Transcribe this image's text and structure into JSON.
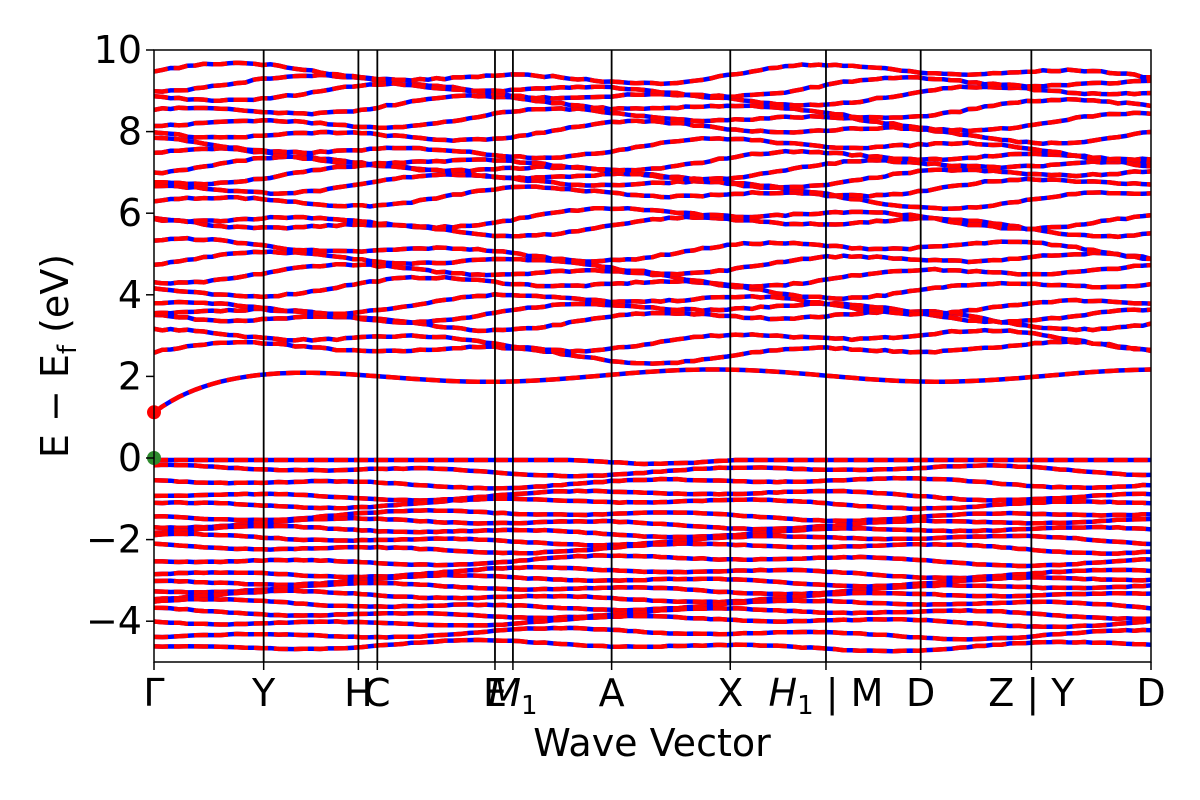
{
  "chart_data": {
    "type": "line",
    "title": "",
    "xlabel": "Wave Vector",
    "ylabel": "E − E_f (eV)",
    "ylabel_parts": {
      "main": "E − E",
      "sub": "f",
      "unit": " (eV)"
    },
    "ylim": [
      -5,
      10
    ],
    "yticks": [
      -4,
      -2,
      0,
      2,
      4,
      6,
      8,
      10
    ],
    "ytick_labels": [
      "−4",
      "−2",
      "0",
      "2",
      "4",
      "6",
      "8",
      "10"
    ],
    "kpath": [
      {
        "label": "Γ",
        "k": 0.0
      },
      {
        "label": "Y",
        "k": 0.11
      },
      {
        "label": "H",
        "k": 0.205
      },
      {
        "label": "C",
        "k": 0.224
      },
      {
        "label": "E",
        "k": 0.342
      },
      {
        "label": "M",
        "sub": "1",
        "k": 0.36
      },
      {
        "label": "A",
        "k": 0.459
      },
      {
        "label": "X",
        "k": 0.578
      },
      {
        "label": "H",
        "sub": "1",
        "suffix": " | M",
        "k": 0.674
      },
      {
        "label": "D",
        "k": 0.769
      },
      {
        "label": "Z | Y",
        "k": 0.88
      },
      {
        "label": "D",
        "k": 1.0
      }
    ],
    "xlim": [
      0,
      1
    ],
    "band_colors": {
      "spin_up": "#ff0000",
      "spin_down": "#0000ff"
    },
    "markers": [
      {
        "name": "CBM",
        "k": 0.0,
        "E": 1.12,
        "color": "#ff0000"
      },
      {
        "name": "VBM",
        "k": 0.0,
        "E": 0.0,
        "color": "#2e8b2e"
      }
    ],
    "conduction_band_energies_at_gamma": [
      1.12,
      2.6,
      2.9,
      3.4,
      3.6,
      3.8,
      4.2,
      4.5,
      4.8,
      5.1,
      5.7,
      5.9,
      6.4,
      6.7,
      6.9,
      7.1,
      7.3,
      7.6,
      8.0,
      8.3,
      8.6,
      8.9,
      9.1,
      9.4
    ],
    "valence_band_energies_at_gamma": [
      0.0,
      -0.3,
      -0.6,
      -0.9,
      -1.1,
      -1.4,
      -1.6,
      -1.8,
      -2.0,
      -2.2,
      -2.5,
      -2.8,
      -3.0,
      -3.2,
      -3.4,
      -3.6,
      -3.8,
      -4.0,
      -4.3,
      -4.6
    ]
  }
}
